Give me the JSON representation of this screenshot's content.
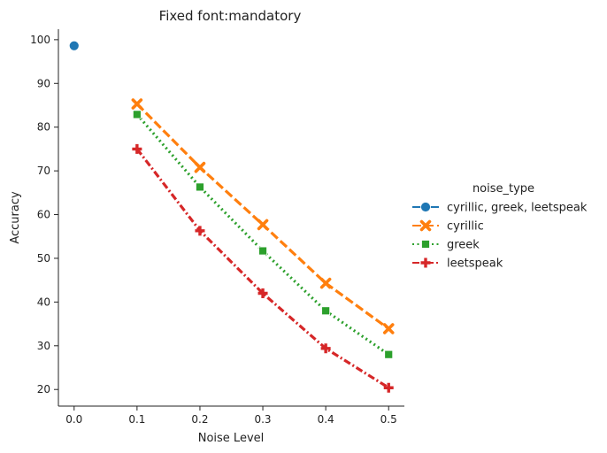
{
  "chart_data": {
    "type": "line",
    "title": "Fixed font:mandatory",
    "xlabel": "Noise Level",
    "ylabel": "Accuracy",
    "xlim": [
      -0.025,
      0.525
    ],
    "ylim": [
      16.2,
      102.4
    ],
    "xticks": [
      0.0,
      0.1,
      0.2,
      0.3,
      0.4,
      0.5
    ],
    "xtick_labels": [
      "0.0",
      "0.1",
      "0.2",
      "0.3",
      "0.4",
      "0.5"
    ],
    "yticks": [
      20,
      30,
      40,
      50,
      60,
      70,
      80,
      90,
      100
    ],
    "ytick_labels": [
      "20",
      "30",
      "40",
      "50",
      "60",
      "70",
      "80",
      "90",
      "100"
    ],
    "grid": false,
    "legend_title": "noise_type",
    "legend_position": "right",
    "series": [
      {
        "name": "cyrillic, greek, leetspeak",
        "color": "#1f77b4",
        "marker": "circle",
        "dash": "solid",
        "x": [
          0.0
        ],
        "y": [
          98.6
        ]
      },
      {
        "name": "cyrillic",
        "color": "#ff7f0e",
        "marker": "x",
        "dash": "dashed",
        "x": [
          0.1,
          0.2,
          0.3,
          0.4,
          0.5
        ],
        "y": [
          85.3,
          70.8,
          57.7,
          44.3,
          33.9
        ]
      },
      {
        "name": "greek",
        "color": "#2ca02c",
        "marker": "square",
        "dash": "dotted",
        "x": [
          0.1,
          0.2,
          0.3,
          0.4,
          0.5
        ],
        "y": [
          82.9,
          66.3,
          51.7,
          38.0,
          28.0
        ]
      },
      {
        "name": "leetspeak",
        "color": "#d62728",
        "marker": "plus",
        "dash": "dashdot",
        "x": [
          0.1,
          0.2,
          0.3,
          0.4,
          0.5
        ],
        "y": [
          75.0,
          56.3,
          42.0,
          29.4,
          20.4
        ]
      }
    ]
  }
}
